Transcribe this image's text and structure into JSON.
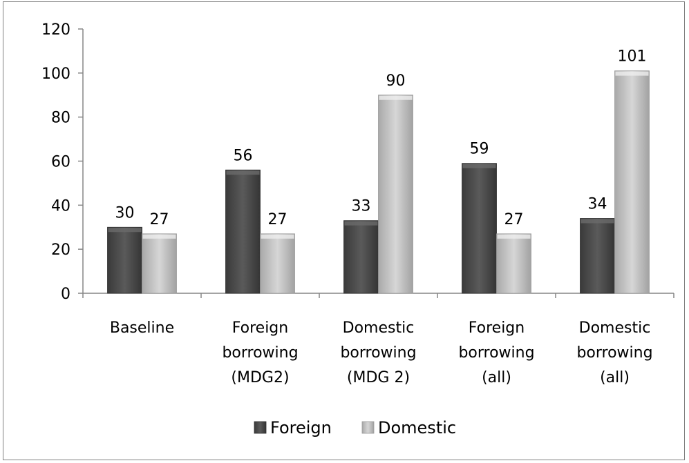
{
  "chart_data": {
    "type": "bar",
    "categories": [
      [
        "Baseline"
      ],
      [
        "Foreign",
        "borrowing",
        "(MDG2)"
      ],
      [
        "Domestic",
        "borrowing",
        "(MDG 2)"
      ],
      [
        "Foreign",
        "borrowing",
        "(all)"
      ],
      [
        "Domestic",
        "borrowing",
        "(all)"
      ]
    ],
    "series": [
      {
        "name": "Foreign",
        "values": [
          30,
          56,
          33,
          59,
          34
        ],
        "color": "#4a4a4a"
      },
      {
        "name": "Domestic",
        "values": [
          27,
          27,
          90,
          27,
          101
        ],
        "color": "#bdbdbd"
      }
    ],
    "ylim": [
      0,
      120
    ],
    "yticks": [
      "0",
      "20",
      "40",
      "60",
      "80",
      "100",
      "120"
    ],
    "data_labels": true,
    "grid": false,
    "legend_position": "bottom"
  }
}
